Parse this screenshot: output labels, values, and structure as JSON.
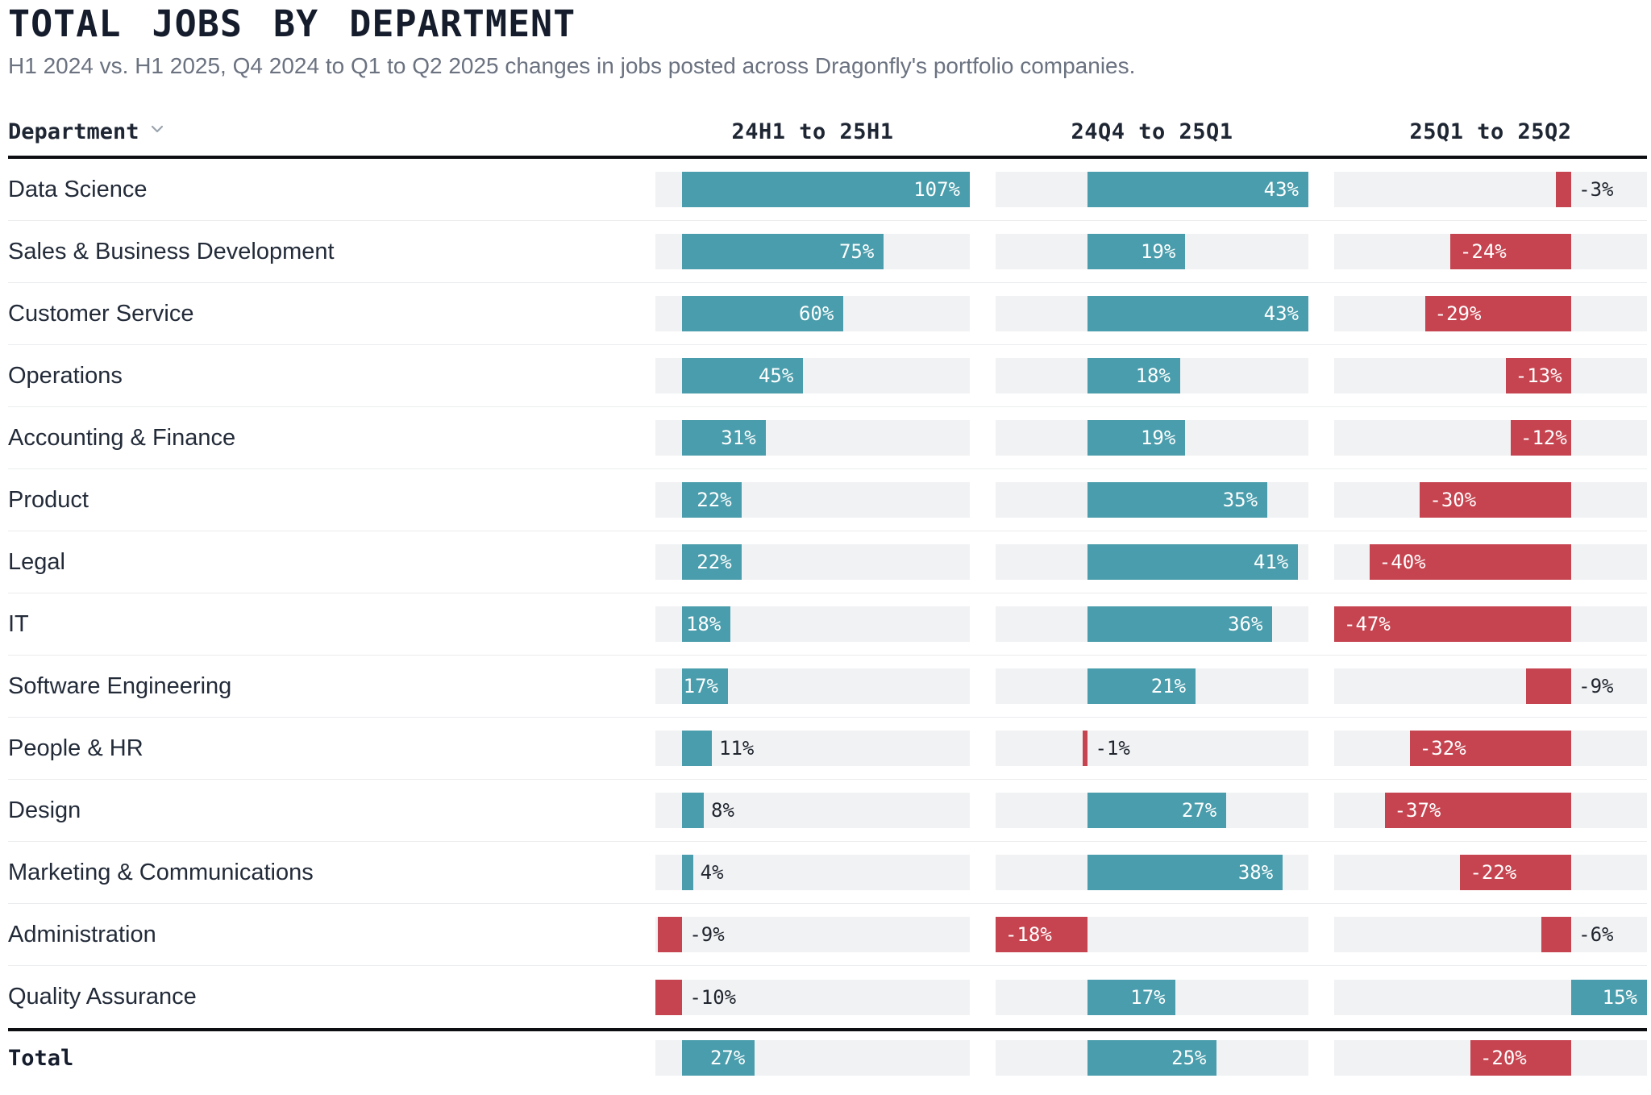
{
  "header": {
    "title": "TOTAL JOBS BY DEPARTMENT",
    "subtitle": "H1 2024 vs. H1 2025, Q4 2024 to Q1 to Q2 2025 changes in jobs posted across Dragonfly's portfolio companies."
  },
  "table": {
    "department_header": "Department",
    "sort_icon": "chevron-down",
    "columns": [
      "24H1 to 25H1",
      "24Q4 to 25Q1",
      "25Q1 to 25Q2"
    ],
    "total_label": "Total"
  },
  "chart_data": {
    "type": "bar",
    "orientation": "horizontal",
    "value_format": "percent",
    "categories": [
      "Data Science",
      "Sales & Business Development",
      "Customer Service",
      "Operations",
      "Accounting & Finance",
      "Product",
      "Legal",
      "IT",
      "Software Engineering",
      "People & HR",
      "Design",
      "Marketing & Communications",
      "Administration",
      "Quality Assurance"
    ],
    "series": [
      {
        "name": "24H1 to 25H1",
        "values": [
          107,
          75,
          60,
          45,
          31,
          22,
          22,
          18,
          17,
          11,
          8,
          4,
          -9,
          -10
        ],
        "total": 27,
        "axis_range": [
          -10,
          107
        ]
      },
      {
        "name": "24Q4 to 25Q1",
        "values": [
          43,
          19,
          43,
          18,
          19,
          35,
          41,
          36,
          21,
          -1,
          27,
          38,
          -18,
          17
        ],
        "total": 25,
        "axis_range": [
          -18,
          43
        ]
      },
      {
        "name": "25Q1 to 25Q2",
        "values": [
          -3,
          -24,
          -29,
          -13,
          -12,
          -30,
          -40,
          -47,
          -9,
          -32,
          -37,
          -22,
          -6,
          15
        ],
        "total": -20,
        "axis_range": [
          -47,
          15
        ]
      }
    ],
    "colors": {
      "positive": "#4A9DAC",
      "negative": "#C64450",
      "track": "#F1F2F4"
    },
    "legend": "none",
    "grid": "off"
  }
}
